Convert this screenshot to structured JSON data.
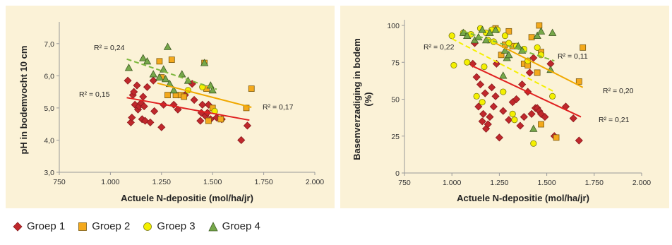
{
  "chart_data": [
    {
      "type": "scatter",
      "xlabel": "Actuele N-depositie (mol/ha/jr)",
      "ylabel": "pH in bodemvocht 10 cm",
      "xlim": [
        750,
        2000
      ],
      "ylim": [
        3,
        7.5
      ],
      "x_ticks": [
        "750",
        "1.000",
        "1.250",
        "1.500",
        "1.750",
        "2.000"
      ],
      "y_ticks": [
        "3,0",
        "4,0",
        "5,0",
        "6,0",
        "7,0"
      ],
      "grid": false,
      "series": [
        {
          "name": "Groep 1",
          "points": [
            [
              1085,
              5.85
            ],
            [
              1100,
              4.55
            ],
            [
              1105,
              4.7
            ],
            [
              1110,
              5.4
            ],
            [
              1115,
              5.5
            ],
            [
              1120,
              5.1
            ],
            [
              1130,
              5.7
            ],
            [
              1135,
              4.95
            ],
            [
              1140,
              5.05
            ],
            [
              1150,
              5.15
            ],
            [
              1155,
              4.65
            ],
            [
              1160,
              5.35
            ],
            [
              1165,
              5.05
            ],
            [
              1170,
              4.6
            ],
            [
              1180,
              5.65
            ],
            [
              1195,
              4.55
            ],
            [
              1210,
              5.85
            ],
            [
              1215,
              4.9
            ],
            [
              1250,
              4.4
            ],
            [
              1260,
              5.1
            ],
            [
              1310,
              5.1
            ],
            [
              1330,
              4.95
            ],
            [
              1365,
              5.4
            ],
            [
              1400,
              5.75
            ],
            [
              1410,
              5.25
            ],
            [
              1440,
              4.6
            ],
            [
              1445,
              4.85
            ],
            [
              1450,
              5.1
            ],
            [
              1465,
              4.75
            ],
            [
              1475,
              4.85
            ],
            [
              1480,
              5.1
            ],
            [
              1490,
              4.65
            ],
            [
              1520,
              4.7
            ],
            [
              1545,
              4.65
            ],
            [
              1640,
              4.0
            ],
            [
              1670,
              4.45
            ]
          ]
        },
        {
          "name": "Groep 2",
          "points": [
            [
              1240,
              6.45
            ],
            [
              1250,
              5.95
            ],
            [
              1280,
              5.4
            ],
            [
              1300,
              6.5
            ],
            [
              1320,
              5.4
            ],
            [
              1345,
              5.4
            ],
            [
              1360,
              5.35
            ],
            [
              1460,
              6.4
            ],
            [
              1470,
              5.6
            ],
            [
              1480,
              4.6
            ],
            [
              1500,
              5.0
            ],
            [
              1540,
              4.65
            ],
            [
              1665,
              5.0
            ],
            [
              1690,
              5.6
            ]
          ]
        },
        {
          "name": "Groep 3",
          "points": [
            [
              1380,
              5.55
            ],
            [
              1450,
              5.65
            ],
            [
              1510,
              4.9
            ]
          ]
        },
        {
          "name": "Groep 4",
          "points": [
            [
              1090,
              6.25
            ],
            [
              1160,
              6.55
            ],
            [
              1180,
              6.45
            ],
            [
              1210,
              6.05
            ],
            [
              1240,
              5.95
            ],
            [
              1260,
              6.2
            ],
            [
              1270,
              5.9
            ],
            [
              1280,
              6.9
            ],
            [
              1290,
              5.75
            ],
            [
              1310,
              5.55
            ],
            [
              1350,
              6.05
            ],
            [
              1380,
              5.85
            ],
            [
              1460,
              6.4
            ],
            [
              1490,
              5.7
            ],
            [
              1500,
              5.55
            ]
          ]
        }
      ],
      "trendlines": [
        {
          "series": "Groep 1",
          "from": [
            1080,
            5.32
          ],
          "to": [
            1680,
            4.62
          ],
          "r2": "R² = 0,15"
        },
        {
          "series": "Groep 2",
          "from": [
            1230,
            5.77
          ],
          "to": [
            1690,
            5.02
          ],
          "r2": "R² = 0,17"
        },
        {
          "series": "Groep 4",
          "from": [
            1080,
            6.52
          ],
          "to": [
            1520,
            5.58
          ],
          "r2": "R² = 0,24"
        }
      ]
    },
    {
      "type": "scatter",
      "xlabel": "Actuele N-depositie (mol/ha/jr)",
      "ylabel": "Basenverzadiging in bodem (%)",
      "xlim": [
        750,
        2000
      ],
      "ylim": [
        0,
        100
      ],
      "x_ticks": [
        "750",
        "1.000",
        "1.250",
        "1.500",
        "1.750",
        "2.000"
      ],
      "y_ticks": [
        "0",
        "25",
        "50",
        "75",
        "100"
      ],
      "grid": false,
      "series": [
        {
          "name": "Groep 1",
          "points": [
            [
              1110,
              74
            ],
            [
              1120,
              88
            ],
            [
              1130,
              65
            ],
            [
              1140,
              45
            ],
            [
              1150,
              60
            ],
            [
              1160,
              35
            ],
            [
              1165,
              40
            ],
            [
              1175,
              54
            ],
            [
              1180,
              30
            ],
            [
              1190,
              33
            ],
            [
              1200,
              38
            ],
            [
              1210,
              58
            ],
            [
              1220,
              45
            ],
            [
              1230,
              52
            ],
            [
              1235,
              74
            ],
            [
              1250,
              24
            ],
            [
              1270,
              42
            ],
            [
              1300,
              36
            ],
            [
              1320,
              48
            ],
            [
              1340,
              50
            ],
            [
              1360,
              32
            ],
            [
              1370,
              60
            ],
            [
              1380,
              38
            ],
            [
              1400,
              55
            ],
            [
              1410,
              68
            ],
            [
              1420,
              40
            ],
            [
              1430,
              78
            ],
            [
              1440,
              44
            ],
            [
              1450,
              44
            ],
            [
              1460,
              42
            ],
            [
              1470,
              40
            ],
            [
              1490,
              38
            ],
            [
              1520,
              74
            ],
            [
              1540,
              25
            ],
            [
              1600,
              45
            ],
            [
              1640,
              37
            ],
            [
              1670,
              22
            ]
          ]
        },
        {
          "name": "Groep 2",
          "points": [
            [
              1230,
              98
            ],
            [
              1260,
              80
            ],
            [
              1280,
              87
            ],
            [
              1300,
              96
            ],
            [
              1320,
              86
            ],
            [
              1380,
              74
            ],
            [
              1400,
              73
            ],
            [
              1420,
              92
            ],
            [
              1450,
              68
            ],
            [
              1460,
              100
            ],
            [
              1470,
              82
            ],
            [
              1470,
              33
            ],
            [
              1550,
              24
            ],
            [
              1670,
              62
            ],
            [
              1690,
              85
            ]
          ]
        },
        {
          "name": "Groep 3",
          "points": [
            [
              1000,
              93
            ],
            [
              1010,
              73
            ],
            [
              1060,
              95
            ],
            [
              1080,
              75
            ],
            [
              1100,
              94
            ],
            [
              1130,
              52
            ],
            [
              1150,
              98
            ],
            [
              1160,
              48
            ],
            [
              1170,
              72
            ],
            [
              1180,
              95
            ],
            [
              1190,
              90
            ],
            [
              1210,
              97
            ],
            [
              1220,
              89
            ],
            [
              1240,
              97
            ],
            [
              1270,
              55
            ],
            [
              1280,
              93
            ],
            [
              1300,
              88
            ],
            [
              1320,
              40
            ],
            [
              1330,
              36
            ],
            [
              1340,
              86
            ],
            [
              1380,
              84
            ],
            [
              1400,
              76
            ],
            [
              1430,
              20
            ],
            [
              1450,
              85
            ],
            [
              1470,
              80
            ],
            [
              1530,
              52
            ]
          ]
        },
        {
          "name": "Groep 4",
          "points": [
            [
              1060,
              95
            ],
            [
              1080,
              93
            ],
            [
              1120,
              90
            ],
            [
              1140,
              92
            ],
            [
              1160,
              97
            ],
            [
              1180,
              90
            ],
            [
              1200,
              95
            ],
            [
              1230,
              97
            ],
            [
              1270,
              66
            ],
            [
              1280,
              83
            ],
            [
              1290,
              78
            ],
            [
              1300,
              80
            ],
            [
              1350,
              86
            ],
            [
              1370,
              83
            ],
            [
              1430,
              30
            ],
            [
              1450,
              93
            ],
            [
              1470,
              96
            ],
            [
              1520,
              70
            ],
            [
              1530,
              95
            ]
          ]
        }
      ],
      "trendlines": [
        {
          "series": "Groep 1",
          "from": [
            1100,
            73
          ],
          "to": [
            1680,
            38
          ],
          "r2": "R² = 0,21"
        },
        {
          "series": "Groep 2",
          "from": [
            1230,
            88
          ],
          "to": [
            1690,
            58
          ],
          "r2": "R² = 0,20"
        },
        {
          "series": "Groep 3",
          "from": [
            1000,
            91
          ],
          "to": [
            1540,
            55
          ],
          "r2": "R² = 0,22"
        },
        {
          "series": "Groep 4",
          "from": [
            1060,
            96
          ],
          "to": [
            1540,
            76
          ],
          "r2": "R² = 0,11"
        }
      ]
    }
  ],
  "legend": [
    {
      "label": "Groep 1",
      "shape": "diamond",
      "color": "#C0282C"
    },
    {
      "label": "Groep 2",
      "shape": "square",
      "color": "#F4A91C"
    },
    {
      "label": "Groep 3",
      "shape": "circle",
      "color": "#F4F000"
    },
    {
      "label": "Groep 4",
      "shape": "triangle",
      "color": "#76A84A"
    }
  ],
  "colors": {
    "panel_background": "#FBF2D7",
    "groep1": "#C0282C",
    "groep2": "#F4A91C",
    "groep3": "#F4F000",
    "groep4": "#76A84A",
    "trend_groep4": "#7DB73E"
  }
}
